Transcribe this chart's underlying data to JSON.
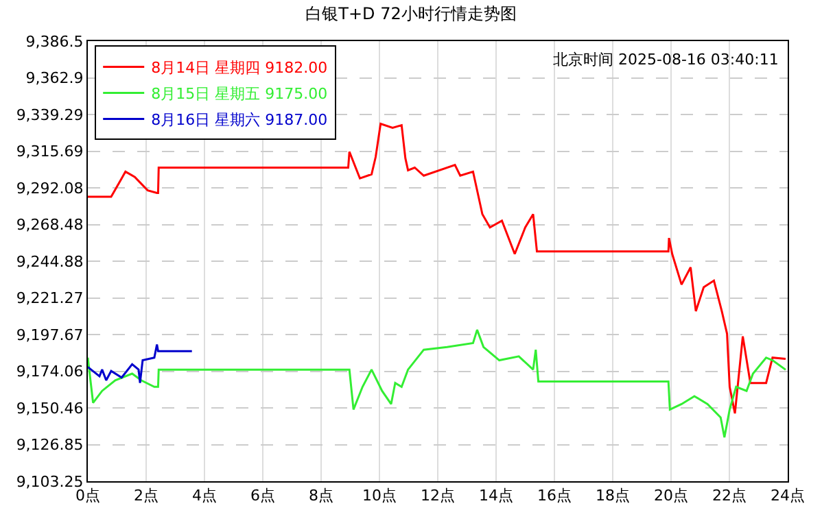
{
  "chart_data": {
    "type": "line",
    "title": "白银T+D 72小时行情走势图",
    "annotations": [
      "北京时间 2025-08-16 03:40:11"
    ],
    "xlim": [
      0,
      24
    ],
    "xticks": [
      {
        "value": 0,
        "label": "0点"
      },
      {
        "value": 2,
        "label": "2点"
      },
      {
        "value": 4,
        "label": "4点"
      },
      {
        "value": 6,
        "label": "6点"
      },
      {
        "value": 8,
        "label": "8点"
      },
      {
        "value": 10,
        "label": "10点"
      },
      {
        "value": 12,
        "label": "12点"
      },
      {
        "value": 14,
        "label": "14点"
      },
      {
        "value": 16,
        "label": "16点"
      },
      {
        "value": 18,
        "label": "18点"
      },
      {
        "value": 20,
        "label": "20点"
      },
      {
        "value": 22,
        "label": "22点"
      },
      {
        "value": 24,
        "label": "24点"
      }
    ],
    "ylim": [
      9103.25,
      9386.5
    ],
    "yticks": [
      {
        "value": 9103.25,
        "label": "9,103.25"
      },
      {
        "value": 9126.85,
        "label": "9,126.85"
      },
      {
        "value": 9150.46,
        "label": "9,150.46"
      },
      {
        "value": 9174.06,
        "label": "9,174.06"
      },
      {
        "value": 9197.67,
        "label": "9,197.67"
      },
      {
        "value": 9221.27,
        "label": "9,221.27"
      },
      {
        "value": 9244.88,
        "label": "9,244.88"
      },
      {
        "value": 9268.48,
        "label": "9,268.48"
      },
      {
        "value": 9292.08,
        "label": "9,292.08"
      },
      {
        "value": 9315.69,
        "label": "9,315.69"
      },
      {
        "value": 9339.29,
        "label": "9,339.29"
      },
      {
        "value": 9362.9,
        "label": "9,362.9"
      },
      {
        "value": 9386.5,
        "label": "9,386.5"
      }
    ],
    "grid": true,
    "legend": "top left",
    "marker": "none",
    "line_style": "solid",
    "series": [
      {
        "name": "8月14日 星期四 9182.00",
        "color": "#ff0000",
        "x": [
          0,
          0.8,
          1.16,
          1.29,
          1.61,
          2.05,
          2.37,
          2.41,
          2.43,
          8.93,
          8.97,
          9.33,
          9.73,
          9.87,
          10.04,
          10.45,
          10.76,
          10.89,
          10.98,
          11.21,
          11.52,
          12.59,
          12.77,
          13.21,
          13.53,
          13.79,
          14.2,
          14.64,
          15.0,
          15.27,
          15.4,
          19.91,
          19.93,
          20.04,
          20.36,
          20.67,
          20.85,
          21.12,
          21.47,
          21.74,
          21.92,
          22.01,
          22.19,
          22.46,
          22.72,
          23.26,
          23.48,
          23.93
        ],
        "values": [
          9286.3,
          9286.3,
          9298.2,
          9302.5,
          9299.1,
          9290.5,
          9288.8,
          9288.8,
          9305.1,
          9305.1,
          9315.3,
          9298.2,
          9300.8,
          9311.9,
          9333.3,
          9330.7,
          9332.4,
          9311.1,
          9303.4,
          9305.1,
          9299.9,
          9306.8,
          9299.9,
          9302.5,
          9275.1,
          9266.6,
          9270.9,
          9249.5,
          9266.6,
          9275.1,
          9251.2,
          9251.2,
          9259.8,
          9249.5,
          9229.8,
          9240.9,
          9212.7,
          9228.1,
          9232.4,
          9212.7,
          9198.2,
          9164.0,
          9146.9,
          9196.5,
          9166.5,
          9166.5,
          9182.8,
          9182.0
        ]
      },
      {
        "name": "8月15日 星期五 9175.00",
        "color": "#33ee33",
        "x": [
          0,
          0.18,
          0.49,
          0.94,
          1.52,
          1.83,
          2.28,
          2.41,
          2.43,
          8.97,
          9.11,
          9.42,
          9.73,
          10.09,
          10.4,
          10.54,
          10.76,
          10.98,
          11.52,
          12.32,
          13.21,
          13.35,
          13.57,
          14.11,
          14.78,
          15.27,
          15.36,
          15.45,
          19.91,
          19.96,
          20.36,
          20.8,
          21.25,
          21.7,
          21.83,
          22.01,
          22.23,
          22.59,
          22.81,
          23.26,
          23.48,
          23.93
        ],
        "values": [
          9182.8,
          9153.7,
          9161.4,
          9168.2,
          9172.5,
          9168.2,
          9164.0,
          9164.0,
          9175.1,
          9175.1,
          9149.4,
          9164.0,
          9175.1,
          9161.4,
          9152.9,
          9166.5,
          9164.0,
          9175.1,
          9187.9,
          9189.6,
          9192.2,
          9200.7,
          9189.6,
          9181.1,
          9183.6,
          9175.1,
          9187.9,
          9167.4,
          9167.4,
          9149.4,
          9152.9,
          9158.0,
          9152.9,
          9144.3,
          9131.5,
          9149.4,
          9164.0,
          9161.4,
          9172.5,
          9182.8,
          9181.1,
          9175.0
        ]
      },
      {
        "name": "8月16日 星期六 9187.00",
        "color": "#0000cc",
        "x": [
          0,
          0.4,
          0.49,
          0.63,
          0.8,
          1.16,
          1.52,
          1.74,
          1.79,
          1.88,
          2.28,
          2.37,
          2.41,
          3.57
        ],
        "values": [
          9176.8,
          9170.8,
          9175.1,
          9168.2,
          9174.2,
          9170.0,
          9178.5,
          9175.1,
          9166.5,
          9181.1,
          9182.8,
          9191.3,
          9187.0,
          9187.0
        ]
      }
    ]
  }
}
